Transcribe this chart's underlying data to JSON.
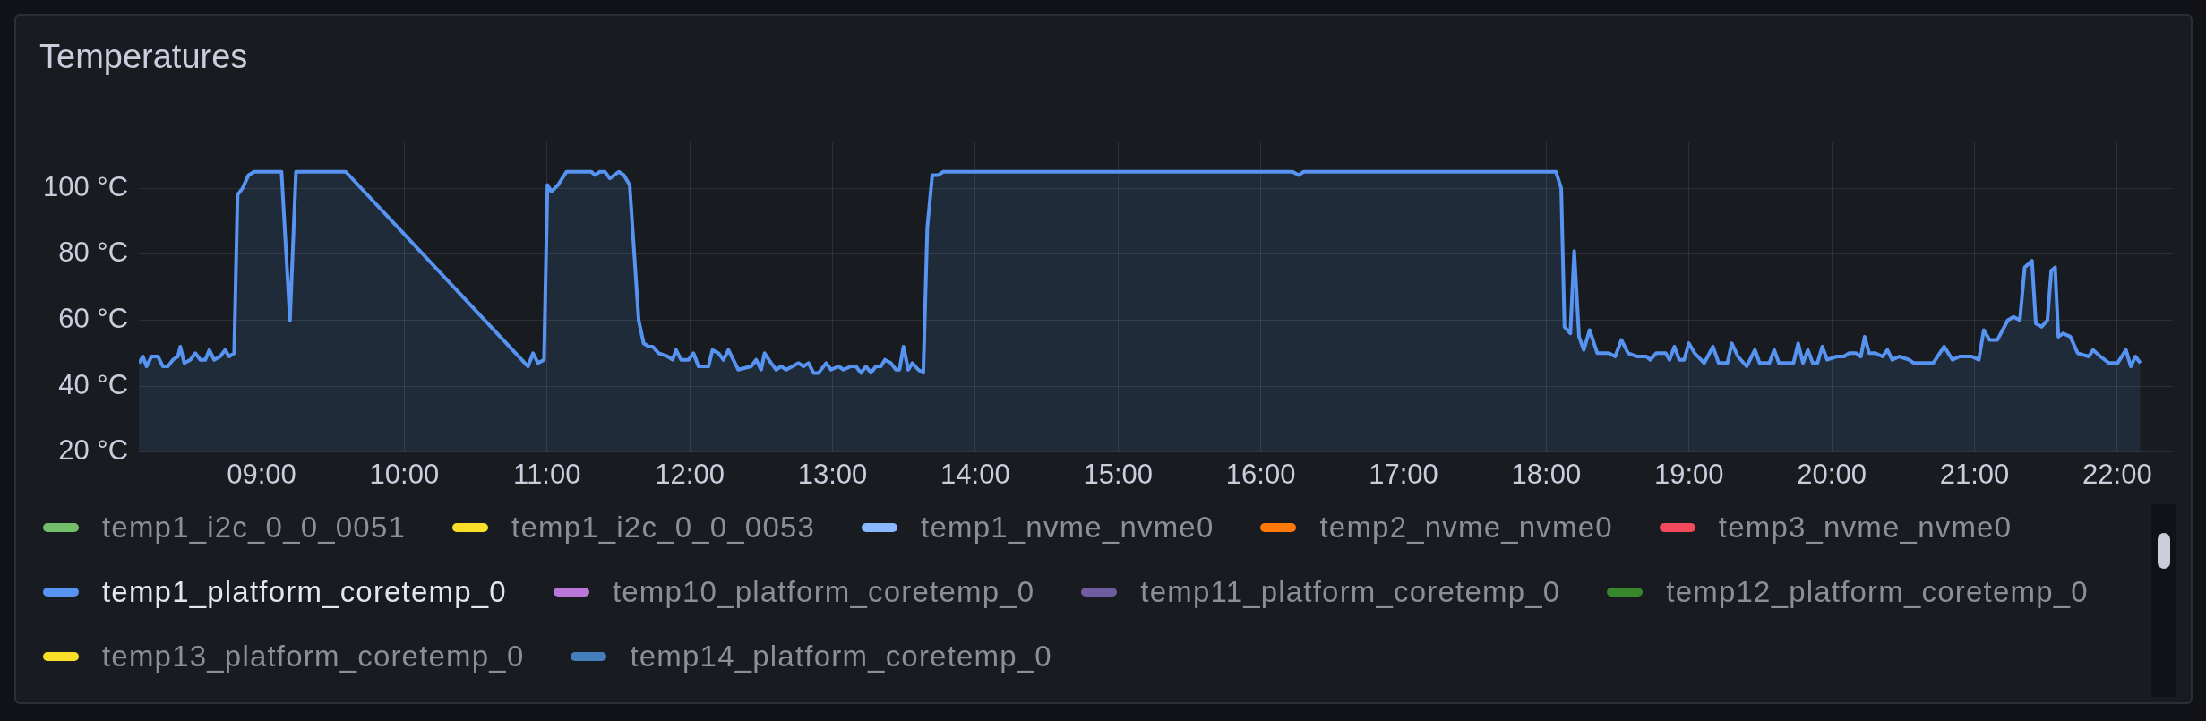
{
  "chart_data": {
    "type": "area",
    "title": "Temperatures",
    "xlim": [
      8.141,
      22.39
    ],
    "ylim": [
      20,
      114
    ],
    "xticks": [
      {
        "value": 9,
        "label": "09:00"
      },
      {
        "value": 10,
        "label": "10:00"
      },
      {
        "value": 11,
        "label": "11:00"
      },
      {
        "value": 12,
        "label": "12:00"
      },
      {
        "value": 13,
        "label": "13:00"
      },
      {
        "value": 14,
        "label": "14:00"
      },
      {
        "value": 15,
        "label": "15:00"
      },
      {
        "value": 16,
        "label": "16:00"
      },
      {
        "value": 17,
        "label": "17:00"
      },
      {
        "value": 18,
        "label": "18:00"
      },
      {
        "value": 19,
        "label": "19:00"
      },
      {
        "value": 20,
        "label": "20:00"
      },
      {
        "value": 21,
        "label": "21:00"
      },
      {
        "value": 22,
        "label": "22:00"
      }
    ],
    "yticks": [
      {
        "value": 20,
        "label": "20 °C"
      },
      {
        "value": 40,
        "label": "40 °C"
      },
      {
        "value": 60,
        "label": "60 °C"
      },
      {
        "value": 80,
        "label": "80 °C"
      },
      {
        "value": 100,
        "label": "100 °C"
      }
    ],
    "grid": true,
    "legend": "bottom",
    "marker": "none",
    "series": [
      {
        "name": "temp1_i2c_0_0_0051",
        "color": "#73bf69"
      },
      {
        "name": "temp1_i2c_0_0_0053",
        "color": "#fade2a"
      },
      {
        "name": "temp1_nvme_nvme0",
        "color": "#8ab8ff"
      },
      {
        "name": "temp2_nvme_nvme0",
        "color": "#ff780a"
      },
      {
        "name": "temp3_nvme_nvme0",
        "color": "#f2495c"
      },
      {
        "name": "temp1_platform_coretemp_0",
        "color": "#5794f2",
        "x": [
          8.141,
          8.169,
          8.194,
          8.229,
          8.274,
          8.309,
          8.344,
          8.379,
          8.414,
          8.431,
          8.459,
          8.501,
          8.536,
          8.571,
          8.606,
          8.634,
          8.668,
          8.71,
          8.745,
          8.773,
          8.808,
          8.832,
          8.867,
          8.909,
          8.948,
          9.14,
          9.199,
          9.241,
          9.59,
          10.867,
          10.902,
          10.937,
          10.979,
          11.003,
          11.031,
          11.077,
          11.136,
          11.311,
          11.335,
          11.37,
          11.405,
          11.44,
          11.503,
          11.538,
          11.579,
          11.642,
          11.677,
          11.712,
          11.74,
          11.782,
          11.845,
          11.88,
          11.904,
          11.939,
          11.991,
          12.026,
          12.061,
          12.096,
          12.131,
          12.159,
          12.201,
          12.236,
          12.271,
          12.305,
          12.34,
          12.43,
          12.465,
          12.5,
          12.524,
          12.57,
          12.605,
          12.64,
          12.675,
          12.72,
          12.762,
          12.797,
          12.832,
          12.867,
          12.902,
          12.955,
          12.99,
          13.042,
          13.077,
          13.129,
          13.164,
          13.199,
          13.234,
          13.269,
          13.304,
          13.339,
          13.367,
          13.409,
          13.444,
          13.469,
          13.497,
          13.531,
          13.559,
          13.601,
          13.636,
          13.664,
          13.699,
          13.741,
          13.776,
          16.224,
          16.266,
          16.301,
          18.068,
          18.105,
          18.128,
          18.169,
          18.196,
          18.23,
          18.263,
          18.304,
          18.358,
          18.439,
          18.483,
          18.527,
          18.574,
          18.635,
          18.702,
          18.729,
          18.77,
          18.803,
          18.837,
          18.864,
          18.898,
          18.932,
          18.966,
          18.999,
          19.04,
          19.107,
          19.168,
          19.208,
          19.269,
          19.3,
          19.343,
          19.404,
          19.462,
          19.495,
          19.563,
          19.597,
          19.63,
          19.732,
          19.765,
          19.799,
          19.833,
          19.867,
          19.9,
          19.934,
          19.968,
          20.035,
          20.086,
          20.12,
          20.171,
          20.204,
          20.231,
          20.262,
          20.306,
          20.356,
          20.39,
          20.424,
          20.474,
          20.542,
          20.576,
          20.711,
          20.788,
          20.846,
          20.896,
          20.981,
          21.031,
          21.065,
          21.106,
          21.16,
          21.234,
          21.274,
          21.318,
          21.352,
          21.403,
          21.43,
          21.47,
          21.511,
          21.538,
          21.565,
          21.588,
          21.622,
          21.672,
          21.723,
          21.801,
          21.831,
          21.882,
          21.943,
          22.003,
          22.061,
          22.095,
          22.128,
          22.162
        ],
        "values": [
          47,
          49,
          46,
          49,
          49,
          46,
          46,
          48,
          49,
          52,
          47,
          48,
          50,
          48,
          48,
          51,
          48,
          49,
          51,
          49,
          50,
          98,
          100,
          104,
          105,
          105,
          60,
          105,
          105,
          46,
          50,
          47,
          48,
          101,
          99,
          101,
          105,
          105,
          104,
          105,
          105,
          103,
          105,
          104,
          101,
          60,
          53,
          52,
          52,
          50,
          49,
          48,
          51,
          48,
          48,
          50,
          46,
          46,
          46,
          51,
          50,
          48,
          51,
          48,
          45,
          46,
          48,
          45,
          50,
          47,
          45,
          46,
          45,
          46,
          47,
          46,
          47,
          44,
          44,
          47,
          45,
          46,
          45,
          46,
          46,
          44,
          46,
          44,
          46,
          46,
          48,
          47,
          45,
          45,
          52,
          45,
          47,
          45,
          44,
          88,
          104,
          104,
          105,
          105,
          104,
          105,
          105,
          100,
          58,
          56,
          81,
          55,
          51,
          57,
          50,
          50,
          49,
          54,
          50,
          49,
          49,
          48,
          50,
          50,
          50,
          48,
          52,
          48,
          48,
          53,
          50,
          47,
          52,
          47,
          47,
          53,
          49,
          46,
          51,
          47,
          47,
          51,
          47,
          47,
          53,
          47,
          51,
          47,
          47,
          52,
          48,
          49,
          49,
          50,
          50,
          49,
          55,
          50,
          50,
          49,
          51,
          48,
          49,
          48,
          47,
          47,
          52,
          48,
          49,
          49,
          48,
          57,
          54,
          54,
          60,
          61,
          60,
          76,
          78,
          59,
          58,
          60,
          75,
          76,
          55,
          56,
          55,
          50,
          49,
          51,
          49,
          47,
          47,
          51,
          46,
          49,
          47
        ]
      },
      {
        "name": "temp10_platform_coretemp_0",
        "color": "#b877d9"
      },
      {
        "name": "temp11_platform_coretemp_0",
        "color": "#705da0"
      },
      {
        "name": "temp12_platform_coretemp_0",
        "color": "#37872d"
      },
      {
        "name": "temp13_platform_coretemp_0",
        "color": "#fade2a"
      },
      {
        "name": "temp14_platform_coretemp_0",
        "color": "#447ebc"
      }
    ]
  }
}
